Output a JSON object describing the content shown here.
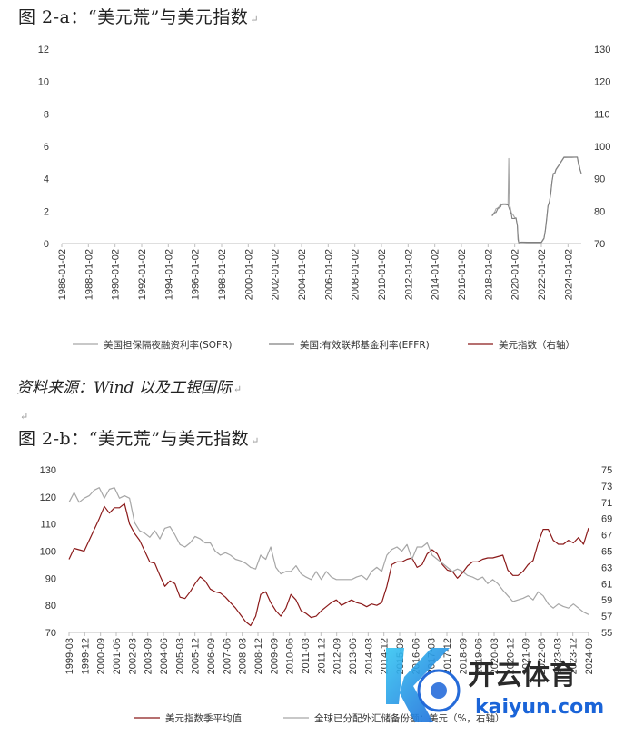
{
  "figure1": {
    "title": "图 2-a：“美元荒”与美元指数",
    "chart_data": {
      "type": "line",
      "title": "",
      "xlabel": "",
      "ylabel": "",
      "x_ticks": [
        "1986-01-02",
        "1988-01-02",
        "1990-01-02",
        "1992-01-02",
        "1994-01-02",
        "1996-01-02",
        "1998-01-02",
        "2000-01-02",
        "2002-01-02",
        "2004-01-02",
        "2006-01-02",
        "2008-01-02",
        "2010-01-02",
        "2012-01-02",
        "2014-01-02",
        "2016-01-02",
        "2018-01-02",
        "2020-01-02",
        "2022-01-02",
        "2024-01-02"
      ],
      "x_range": [
        1986.0,
        2025.0
      ],
      "ylim": [
        0,
        12
      ],
      "y_ticks": [
        0,
        2,
        4,
        6,
        8,
        10,
        12
      ],
      "y2lim": [
        70,
        130
      ],
      "y2_ticks": [
        70,
        80,
        90,
        100,
        110,
        120,
        130
      ],
      "legend_position": "bottom",
      "grid": false,
      "series": [
        {
          "name": "美国担保隔夜融资利率(SOFR)",
          "axis": "left",
          "color": "#a6a6a6",
          "x": [
            2018.3,
            2018.4,
            2018.5,
            2018.6,
            2018.75,
            2018.85,
            2018.95,
            2019.0,
            2019.1,
            2019.2,
            2019.35,
            2019.5,
            2019.55,
            2019.6,
            2019.65,
            2019.7,
            2019.75,
            2019.8,
            2019.9,
            2020.0,
            2020.1,
            2020.2,
            2020.25,
            2020.3,
            2020.5,
            2021.0,
            2021.5,
            2022.0,
            2022.2,
            2022.3,
            2022.4,
            2022.5,
            2022.6,
            2022.7,
            2022.8,
            2022.9,
            2023.0,
            2023.1,
            2023.3,
            2023.5,
            2023.7,
            2024.0,
            2024.3,
            2024.5,
            2024.7,
            2024.8,
            2024.85,
            2024.9,
            2025.0
          ],
          "y": [
            1.75,
            1.85,
            1.95,
            2.15,
            2.2,
            2.3,
            2.45,
            2.4,
            2.45,
            2.45,
            2.45,
            2.4,
            5.25,
            2.4,
            2.3,
            2.1,
            1.9,
            1.85,
            1.75,
            1.6,
            1.55,
            1.1,
            0.5,
            0.05,
            0.08,
            0.05,
            0.05,
            0.05,
            0.3,
            0.8,
            1.5,
            2.3,
            2.55,
            3.05,
            3.8,
            4.3,
            4.3,
            4.55,
            4.8,
            5.05,
            5.3,
            5.31,
            5.31,
            5.32,
            5.33,
            4.9,
            4.8,
            4.6,
            4.3
          ]
        },
        {
          "name": "美国:有效联邦基金利率(EFFR)",
          "axis": "left",
          "color": "#808080",
          "x": [
            2018.3,
            2018.4,
            2018.5,
            2018.6,
            2018.75,
            2018.85,
            2018.95,
            2019.0,
            2019.1,
            2019.2,
            2019.35,
            2019.5,
            2019.6,
            2019.65,
            2019.7,
            2019.75,
            2019.8,
            2019.9,
            2020.0,
            2020.1,
            2020.2,
            2020.25,
            2020.3,
            2020.5,
            2021.0,
            2021.5,
            2022.0,
            2022.2,
            2022.3,
            2022.4,
            2022.5,
            2022.6,
            2022.7,
            2022.8,
            2022.9,
            2023.0,
            2023.1,
            2023.3,
            2023.5,
            2023.7,
            2024.0,
            2024.3,
            2024.5,
            2024.7,
            2024.8,
            2024.85,
            2024.9,
            2025.0
          ],
          "y": [
            1.7,
            1.8,
            1.91,
            1.92,
            2.18,
            2.2,
            2.27,
            2.4,
            2.4,
            2.41,
            2.4,
            2.38,
            2.13,
            2.04,
            1.9,
            1.83,
            1.55,
            1.55,
            1.55,
            1.58,
            1.1,
            0.25,
            0.06,
            0.09,
            0.08,
            0.08,
            0.08,
            0.33,
            0.83,
            1.58,
            2.33,
            2.56,
            3.08,
            3.83,
            4.33,
            4.33,
            4.58,
            4.83,
            5.08,
            5.33,
            5.33,
            5.33,
            5.33,
            5.33,
            4.83,
            4.83,
            4.58,
            4.33
          ]
        },
        {
          "name": "美元指数（右轴）",
          "axis": "right",
          "color": "#8b1a1a",
          "x": [],
          "y": []
        }
      ]
    }
  },
  "source_text": "资料来源：Wind 以及工银国际",
  "para_mark": "↵",
  "figure2": {
    "title": "图 2-b：“美元荒”与美元指数",
    "chart_data": {
      "type": "line",
      "title": "",
      "xlabel": "",
      "ylabel": "",
      "x_ticks": [
        "1999-03",
        "1999-12",
        "2000-09",
        "2001-06",
        "2002-03",
        "2003-09",
        "2004-06",
        "2005-03",
        "2005-12",
        "2006-09",
        "2007-06",
        "2008-03",
        "2008-12",
        "2009-09",
        "2010-06",
        "2011-03",
        "2011-12",
        "2012-09",
        "2013-06",
        "2014-03",
        "2014-12",
        "2015-09",
        "2016-06",
        "2017-03",
        "2017-12",
        "2018-09",
        "2019-06",
        "2020-03",
        "2020-12",
        "2021-09",
        "2022-06",
        "2023-03",
        "2023-12",
        "2024-09"
      ],
      "ylim": [
        70,
        130
      ],
      "y_ticks": [
        70,
        80,
        90,
        100,
        110,
        120,
        130
      ],
      "y2lim": [
        55,
        75
      ],
      "y2_ticks": [
        55,
        57,
        59,
        61,
        63,
        65,
        67,
        69,
        71,
        73,
        75
      ],
      "legend_position": "bottom",
      "grid": false,
      "series": [
        {
          "name": "美元指数季平均值",
          "axis": "left",
          "color": "#8b1a1a",
          "x": [
            1999.0,
            1999.25,
            1999.5,
            1999.75,
            2000.0,
            2000.25,
            2000.5,
            2000.75,
            2001.0,
            2001.25,
            2001.5,
            2001.75,
            2002.0,
            2002.25,
            2002.5,
            2002.75,
            2003.0,
            2003.25,
            2003.5,
            2003.75,
            2004.0,
            2004.25,
            2004.5,
            2004.75,
            2005.0,
            2005.25,
            2005.5,
            2005.75,
            2006.0,
            2006.25,
            2006.5,
            2006.75,
            2007.0,
            2007.25,
            2007.5,
            2007.75,
            2008.0,
            2008.25,
            2008.5,
            2008.75,
            2009.0,
            2009.25,
            2009.5,
            2009.75,
            2010.0,
            2010.25,
            2010.5,
            2010.75,
            2011.0,
            2011.25,
            2011.5,
            2011.75,
            2012.0,
            2012.25,
            2012.5,
            2012.75,
            2013.0,
            2013.25,
            2013.5,
            2013.75,
            2014.0,
            2014.25,
            2014.5,
            2014.75,
            2015.0,
            2015.25,
            2015.5,
            2015.75,
            2016.0,
            2016.25,
            2016.5,
            2016.75,
            2017.0,
            2017.25,
            2017.5,
            2017.75,
            2018.0,
            2018.25,
            2018.5,
            2018.75,
            2019.0,
            2019.25,
            2019.5,
            2019.75,
            2020.0,
            2020.25,
            2020.5,
            2020.75,
            2021.0,
            2021.25,
            2021.5,
            2021.75,
            2022.0,
            2022.25,
            2022.5,
            2022.75,
            2023.0,
            2023.25,
            2023.5,
            2023.75,
            2024.0,
            2024.25,
            2024.5,
            2024.75
          ],
          "y": [
            97.0,
            101.0,
            100.5,
            100.0,
            104.0,
            108.0,
            112.0,
            116.5,
            114.0,
            116.0,
            116.0,
            117.5,
            110.0,
            106.5,
            104.0,
            100.0,
            96.0,
            95.5,
            91.0,
            87.0,
            89.0,
            88.0,
            83.0,
            82.5,
            85.0,
            88.0,
            90.5,
            89.0,
            86.0,
            85.0,
            84.5,
            83.0,
            81.0,
            79.0,
            76.5,
            74.0,
            72.5,
            76.0,
            84.0,
            85.0,
            81.0,
            78.0,
            76.0,
            79.0,
            84.0,
            82.0,
            78.0,
            77.0,
            75.5,
            76.0,
            78.0,
            79.5,
            81.0,
            82.0,
            80.0,
            81.0,
            82.0,
            81.0,
            80.5,
            79.5,
            80.5,
            80.0,
            81.0,
            87.0,
            95.0,
            96.0,
            96.0,
            97.0,
            97.5,
            94.0,
            95.0,
            99.0,
            100.5,
            99.0,
            95.0,
            93.0,
            92.5,
            90.0,
            92.0,
            94.5,
            96.0,
            96.0,
            97.0,
            97.5,
            97.5,
            98.0,
            98.5,
            93.0,
            91.0,
            91.0,
            92.5,
            95.0,
            96.5,
            103.0,
            108.0,
            108.0,
            104.0,
            102.5,
            102.5,
            104.0,
            103.0,
            105.0,
            102.5,
            108.5
          ]
        },
        {
          "name": "全球已分配外汇储备份额：美元（%，右轴）",
          "axis": "right",
          "color": "#a6a6a6",
          "x": [
            1999.0,
            1999.25,
            1999.5,
            1999.75,
            2000.0,
            2000.25,
            2000.5,
            2000.75,
            2001.0,
            2001.25,
            2001.5,
            2001.75,
            2002.0,
            2002.25,
            2002.5,
            2002.75,
            2003.0,
            2003.25,
            2003.5,
            2003.75,
            2004.0,
            2004.25,
            2004.5,
            2004.75,
            2005.0,
            2005.25,
            2005.5,
            2005.75,
            2006.0,
            2006.25,
            2006.5,
            2006.75,
            2007.0,
            2007.25,
            2007.5,
            2007.75,
            2008.0,
            2008.25,
            2008.5,
            2008.75,
            2009.0,
            2009.25,
            2009.5,
            2009.75,
            2010.0,
            2010.25,
            2010.5,
            2010.75,
            2011.0,
            2011.25,
            2011.5,
            2011.75,
            2012.0,
            2012.25,
            2012.5,
            2012.75,
            2013.0,
            2013.25,
            2013.5,
            2013.75,
            2014.0,
            2014.25,
            2014.5,
            2014.75,
            2015.0,
            2015.25,
            2015.5,
            2015.75,
            2016.0,
            2016.25,
            2016.5,
            2016.75,
            2017.0,
            2017.25,
            2017.5,
            2017.75,
            2018.0,
            2018.25,
            2018.5,
            2018.75,
            2019.0,
            2019.25,
            2019.5,
            2019.75,
            2020.0,
            2020.25,
            2020.5,
            2020.75,
            2021.0,
            2021.25,
            2021.5,
            2021.75,
            2022.0,
            2022.25,
            2022.5,
            2022.75,
            2023.0,
            2023.25,
            2023.5,
            2023.75,
            2024.0,
            2024.25,
            2024.5,
            2024.75
          ],
          "y": [
            71.0,
            72.2,
            71.0,
            71.5,
            71.8,
            72.5,
            72.8,
            71.5,
            72.6,
            72.8,
            71.5,
            71.8,
            71.5,
            68.5,
            67.5,
            67.2,
            66.7,
            67.5,
            66.5,
            67.8,
            68.0,
            67.0,
            65.8,
            65.5,
            66.0,
            66.8,
            66.5,
            66.0,
            66.0,
            65.0,
            64.5,
            64.8,
            64.5,
            64.0,
            63.8,
            63.5,
            63.0,
            62.8,
            64.5,
            64.0,
            65.5,
            63.0,
            62.2,
            62.5,
            62.5,
            63.2,
            62.2,
            61.8,
            61.5,
            62.5,
            61.5,
            62.5,
            61.8,
            61.5,
            61.5,
            61.5,
            61.5,
            61.8,
            62.0,
            61.5,
            62.5,
            63.0,
            62.5,
            64.5,
            65.2,
            65.5,
            65.0,
            65.8,
            64.0,
            65.5,
            65.5,
            66.0,
            64.5,
            64.0,
            63.5,
            63.0,
            62.5,
            62.8,
            62.5,
            62.0,
            61.8,
            61.5,
            61.8,
            61.0,
            61.5,
            61.0,
            60.2,
            59.5,
            58.8,
            59.0,
            59.2,
            59.5,
            59.0,
            60.0,
            59.5,
            58.5,
            58.0,
            58.5,
            58.2,
            58.0,
            58.5,
            58.0,
            57.5,
            57.2
          ]
        }
      ]
    }
  }
}
